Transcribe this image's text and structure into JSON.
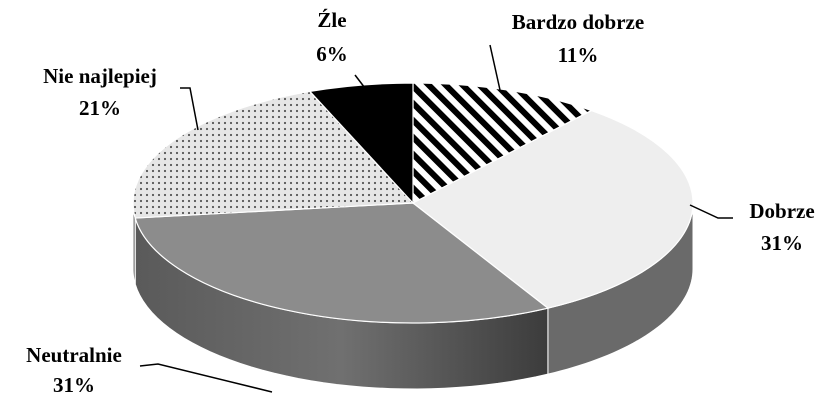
{
  "chart_data": {
    "type": "pie",
    "categories": [
      "Bardzo dobrze",
      "Dobrze",
      "Neutralnie",
      "Nie najlepiej",
      "Źle"
    ],
    "values": [
      11,
      31,
      31,
      21,
      6
    ],
    "value_labels": [
      "11%",
      "31%",
      "31%",
      "21%",
      "6%"
    ],
    "colors": [
      "#ffffff",
      "#eeeeee",
      "#8c8c8c",
      "#dcdcdc",
      "#000000"
    ]
  }
}
